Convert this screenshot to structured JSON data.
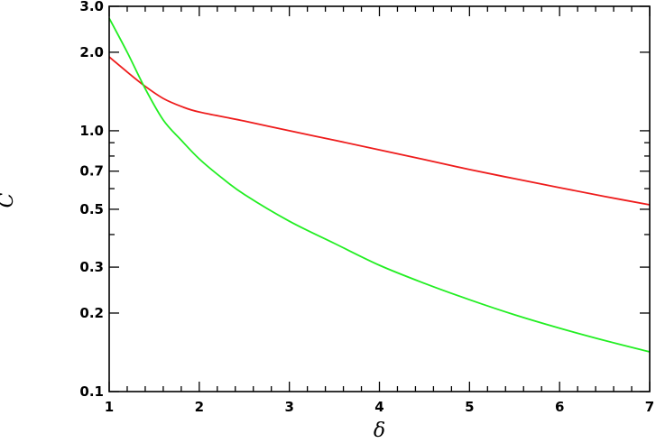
{
  "chart_data": {
    "type": "line",
    "title": "",
    "xlabel": "δ",
    "ylabel": "C",
    "xlim": [
      1,
      7
    ],
    "ylim": [
      0.1,
      3.0
    ],
    "yscale": "log",
    "grid": false,
    "x_ticks": [
      1,
      2,
      3,
      4,
      5,
      6,
      7
    ],
    "x_minor_step": 0.2,
    "y_ticks": [
      0.1,
      0.2,
      0.3,
      0.5,
      0.7,
      1.0,
      2.0,
      3.0
    ],
    "y_tick_labels": [
      "0.1",
      "0.2",
      "0.3",
      "0.5",
      "0.7",
      "1.0",
      "2.0",
      "3.0"
    ],
    "y_minor_ticks": [
      0.4,
      0.6,
      0.8,
      0.9
    ],
    "series": [
      {
        "color": "#ee1c1c",
        "x": [
          1.0,
          1.2,
          1.4,
          1.6,
          1.8,
          2.0,
          2.5,
          3.0,
          3.5,
          4.0,
          4.5,
          5.0,
          5.5,
          6.0,
          6.5,
          7.0
        ],
        "values": [
          1.92,
          1.68,
          1.48,
          1.33,
          1.24,
          1.18,
          1.09,
          1.0,
          0.92,
          0.845,
          0.775,
          0.71,
          0.655,
          0.605,
          0.56,
          0.52
        ]
      },
      {
        "color": "#22ee22",
        "x": [
          1.0,
          1.2,
          1.4,
          1.6,
          1.8,
          2.0,
          2.25,
          2.5,
          3.0,
          3.5,
          4.0,
          4.5,
          5.0,
          5.5,
          6.0,
          6.5,
          7.0
        ],
        "values": [
          2.7,
          2.0,
          1.45,
          1.1,
          0.92,
          0.78,
          0.66,
          0.57,
          0.45,
          0.37,
          0.305,
          0.26,
          0.225,
          0.197,
          0.175,
          0.157,
          0.142
        ]
      }
    ]
  }
}
